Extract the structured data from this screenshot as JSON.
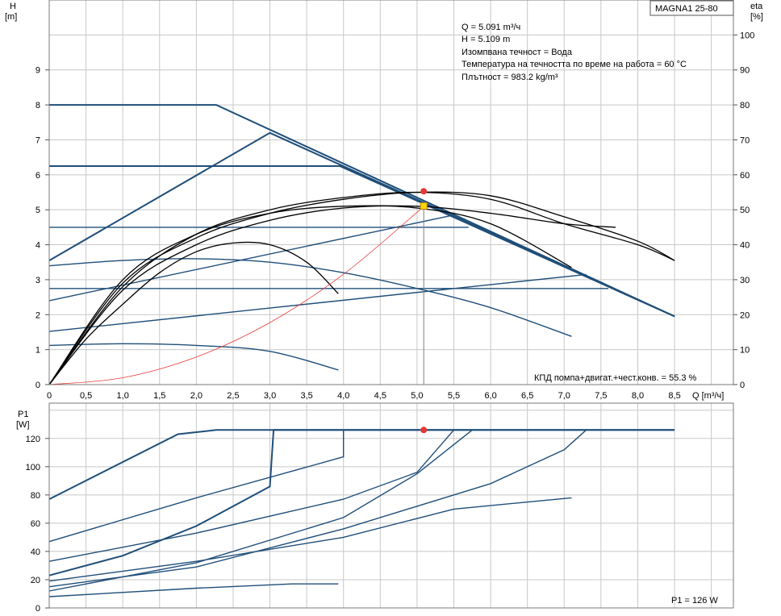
{
  "model_label": "MAGNA1 25-80",
  "info_lines": [
    "Q = 5.091 m³/ч",
    "H = 5.109 m",
    "Изомпвана течност = Вода",
    "Температура на течността по време на работа = 60 °C",
    "Плътност = 983.2 kg/m³"
  ],
  "efficiency_note": "КПД помпа+двигат.+чест.конв. = 55.3  %",
  "power_note": "P1 = 126 W",
  "colors": {
    "curve": "#1f4e79",
    "eta": "#000000",
    "system": "#e53935",
    "grid": "#c8c8c8",
    "duty_point": "#e53935",
    "duty_point_eta": "#ffd600"
  },
  "chart_data": [
    {
      "type": "line",
      "title": "",
      "x_axis": {
        "label_lines": [
          "Q [m³/ч]"
        ],
        "min": 0,
        "max": 9.3,
        "ticks": [
          0,
          0.5,
          1.0,
          1.5,
          2.0,
          2.5,
          3.0,
          3.5,
          4.0,
          4.5,
          5.0,
          5.5,
          6.0,
          6.5,
          7.0,
          7.5,
          8.0,
          8.5
        ],
        "tick_labels": [
          "0",
          "0,5",
          "1,0",
          "1,5",
          "2,0",
          "2,5",
          "3,0",
          "3,5",
          "4,0",
          "4,5",
          "5,0",
          "5,5",
          "6,0",
          "6,5",
          "7,0",
          "7,5",
          "8,0",
          "8,5"
        ]
      },
      "y_axis_left": {
        "label_lines": [
          "H",
          "[m]"
        ],
        "min": 0,
        "max": 11,
        "ticks": [
          0,
          1,
          2,
          3,
          4,
          5,
          6,
          7,
          8,
          9
        ]
      },
      "y_axis_right": {
        "label_lines": [
          "eta",
          "[%]"
        ],
        "min": 0,
        "max": 110,
        "ticks": [
          0,
          10,
          20,
          30,
          40,
          50,
          60,
          70,
          80,
          90,
          100
        ]
      },
      "grid": true,
      "series": [
        {
          "kind": "head",
          "points": [
            [
              0,
              8
            ],
            [
              2.27,
              8
            ],
            [
              8.5,
              1.95
            ]
          ]
        },
        {
          "kind": "head",
          "points": [
            [
              0,
              3.55
            ],
            [
              3.0,
              7.2
            ],
            [
              8.5,
              1.95
            ]
          ]
        },
        {
          "kind": "head",
          "points": [
            [
              0,
              6.25
            ],
            [
              3.95,
              6.25
            ],
            [
              8.5,
              1.95
            ]
          ]
        },
        {
          "kind": "head",
          "points": [
            [
              0,
              4.5
            ],
            [
              5.7,
              4.5
            ]
          ]
        },
        {
          "kind": "head",
          "points": [
            [
              0,
              2.75
            ],
            [
              7.6,
              2.75
            ]
          ]
        },
        {
          "kind": "head",
          "points": [
            [
              0,
              2.4
            ],
            [
              5.5,
              4.85
            ]
          ]
        },
        {
          "kind": "head",
          "points": [
            [
              0,
              1.52
            ],
            [
              7.3,
              3.15
            ]
          ]
        },
        {
          "kind": "head",
          "points": [
            [
              0,
              3.4
            ],
            [
              1.0,
              3.55
            ],
            [
              2.0,
              3.6
            ],
            [
              3.0,
              3.5
            ],
            [
              4.0,
              3.2
            ],
            [
              5.0,
              2.75
            ],
            [
              6.0,
              2.2
            ],
            [
              7.1,
              1.38
            ]
          ]
        },
        {
          "kind": "head",
          "points": [
            [
              0,
              1.12
            ],
            [
              1.0,
              1.17
            ],
            [
              2.0,
              1.12
            ],
            [
              3.0,
              0.95
            ],
            [
              3.93,
              0.42
            ]
          ]
        },
        {
          "kind": "eta",
          "points": [
            [
              0,
              0
            ],
            [
              1.0,
              27
            ],
            [
              2.0,
              40
            ],
            [
              3.0,
              47
            ],
            [
              4.0,
              50.5
            ],
            [
              5.0,
              51
            ],
            [
              6.0,
              49
            ],
            [
              7.0,
              46
            ],
            [
              7.7,
              45
            ]
          ]
        },
        {
          "kind": "eta",
          "points": [
            [
              0,
              0
            ],
            [
              1.0,
              29
            ],
            [
              2.0,
              42
            ],
            [
              3.0,
              49
            ],
            [
              4.0,
              53
            ],
            [
              5.0,
              55
            ],
            [
              6.0,
              54
            ],
            [
              7.0,
              48
            ],
            [
              8.0,
              41
            ],
            [
              8.5,
              35.5
            ]
          ]
        },
        {
          "kind": "eta",
          "points": [
            [
              0,
              0
            ],
            [
              1.0,
              28
            ],
            [
              2.0,
              43
            ],
            [
              3.0,
              50
            ],
            [
              4.0,
              53.5
            ],
            [
              5.0,
              55
            ],
            [
              6.0,
              53
            ],
            [
              7.0,
              46
            ],
            [
              8.0,
              40
            ],
            [
              8.5,
              35.5
            ]
          ]
        },
        {
          "kind": "eta",
          "points": [
            [
              0,
              0
            ],
            [
              1.0,
              30
            ],
            [
              2.0,
              43
            ],
            [
              3.0,
              49
            ],
            [
              4.0,
              51
            ],
            [
              5.0,
              50.5
            ],
            [
              6.0,
              46
            ],
            [
              7.1,
              33.5
            ]
          ]
        },
        {
          "kind": "eta",
          "points": [
            [
              0,
              0
            ],
            [
              0.5,
              13
            ],
            [
              1.0,
              23
            ],
            [
              1.5,
              32
            ],
            [
              2.0,
              38
            ],
            [
              2.5,
              40.5
            ],
            [
              3.0,
              40
            ],
            [
              3.5,
              35
            ],
            [
              3.93,
              26
            ]
          ]
        },
        {
          "kind": "system",
          "points": [
            [
              0,
              0
            ],
            [
              1.0,
              0.197
            ],
            [
              2.0,
              0.788
            ],
            [
              3.0,
              1.774
            ],
            [
              4.0,
              3.154
            ],
            [
              5.0,
              4.928
            ],
            [
              5.091,
              5.109
            ]
          ]
        }
      ],
      "duty_point": {
        "q": 5.091,
        "h": 5.109,
        "eta": 55.3
      }
    },
    {
      "type": "line",
      "title": "",
      "x_axis": {
        "min": 0,
        "max": 9.3
      },
      "y_axis_left": {
        "label_lines": [
          "P1",
          "[W]"
        ],
        "min": 0,
        "max": 145,
        "ticks": [
          0,
          20,
          40,
          60,
          80,
          100,
          120
        ]
      },
      "grid": true,
      "series": [
        {
          "kind": "power",
          "points": [
            [
              0,
              77
            ],
            [
              1.75,
              123
            ],
            [
              2.27,
              126
            ],
            [
              8.5,
              126
            ]
          ]
        },
        {
          "kind": "power",
          "points": [
            [
              0,
              23
            ],
            [
              1.0,
              37
            ],
            [
              2.0,
              58
            ],
            [
              3.0,
              86
            ],
            [
              3.05,
              126
            ],
            [
              8.5,
              126
            ]
          ]
        },
        {
          "kind": "power",
          "points": [
            [
              0,
              47
            ],
            [
              2.0,
              78
            ],
            [
              4.0,
              107
            ],
            [
              4.0,
              126
            ]
          ]
        },
        {
          "kind": "power",
          "points": [
            [
              0,
              33
            ],
            [
              2.0,
              53
            ],
            [
              4.0,
              77
            ],
            [
              5.0,
              96
            ],
            [
              5.5,
              126
            ]
          ]
        },
        {
          "kind": "power",
          "points": [
            [
              0,
              12
            ],
            [
              2.0,
              32
            ],
            [
              4.0,
              64
            ],
            [
              5.0,
              95
            ],
            [
              5.75,
              126
            ]
          ]
        },
        {
          "kind": "power",
          "points": [
            [
              0,
              15
            ],
            [
              2.0,
              29
            ],
            [
              4.0,
              56
            ],
            [
              6.0,
              88
            ],
            [
              7.0,
              112
            ],
            [
              7.3,
              126
            ]
          ]
        },
        {
          "kind": "power",
          "points": [
            [
              0,
              19
            ],
            [
              2.0,
              33
            ],
            [
              4.0,
              50
            ],
            [
              5.5,
              70
            ],
            [
              7.1,
              78
            ]
          ]
        },
        {
          "kind": "power",
          "points": [
            [
              0,
              8
            ],
            [
              2.0,
              14
            ],
            [
              3.3,
              17
            ],
            [
              3.93,
              17
            ]
          ]
        }
      ],
      "duty_point": {
        "q": 5.091,
        "p1": 126
      }
    }
  ]
}
